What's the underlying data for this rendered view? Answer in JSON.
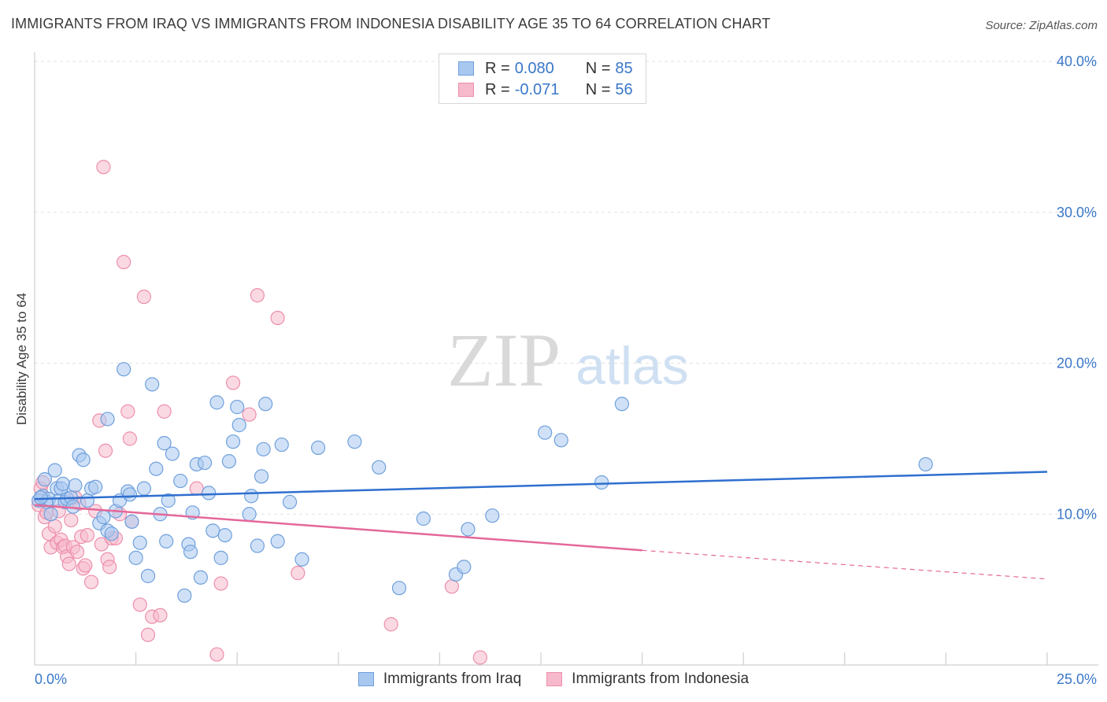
{
  "title": "IMMIGRANTS FROM IRAQ VS IMMIGRANTS FROM INDONESIA DISABILITY AGE 35 TO 64 CORRELATION CHART",
  "source": "Source: ZipAtlas.com",
  "watermark": {
    "zip": "ZIP",
    "atlas": "atlas"
  },
  "legend_top": [
    {
      "r_label": "R =",
      "r_value": "0.080",
      "n_label": "N =",
      "n_value": "85"
    },
    {
      "r_label": "R =",
      "r_value": "-0.071",
      "n_label": "N =",
      "n_value": "56"
    }
  ],
  "colors": {
    "iraq_fill": "#a9c8f0",
    "iraq_stroke": "#6fa0dc",
    "iraq_line": "#2f6fcf",
    "indo_fill": "#f7b9cc",
    "indo_stroke": "#ec8fab",
    "indo_line": "#e4689a",
    "grid": "#e2e2e2",
    "axis_text": "#3a77c9"
  },
  "chart_data": {
    "type": "scatter",
    "title": "IMMIGRANTS FROM IRAQ VS IMMIGRANTS FROM INDONESIA DISABILITY AGE 35 TO 64 CORRELATION CHART",
    "xlabel": "",
    "ylabel": "Disability Age 35 to 64",
    "xlim": [
      0,
      25
    ],
    "ylim": [
      0,
      40
    ],
    "x_tick_labels": [
      "0.0%",
      "25.0%"
    ],
    "y_ticks": [
      10,
      20,
      30,
      40
    ],
    "y_tick_labels": [
      "10.0%",
      "20.0%",
      "30.0%",
      "40.0%"
    ],
    "grid": true,
    "legend_position": "top-center",
    "series": [
      {
        "name": "Immigrants from Iraq",
        "r": 0.08,
        "n": 85,
        "trend": {
          "x0": 0,
          "y0": 11.0,
          "x1": 25,
          "y1": 12.8
        },
        "points": [
          [
            0.1,
            10.9
          ],
          [
            0.2,
            11.2
          ],
          [
            0.25,
            12.3
          ],
          [
            0.3,
            10.8
          ],
          [
            0.35,
            11.0
          ],
          [
            0.4,
            10.0
          ],
          [
            0.5,
            12.9
          ],
          [
            0.55,
            11.7
          ],
          [
            0.6,
            10.9
          ],
          [
            0.65,
            11.7
          ],
          [
            0.7,
            12.0
          ],
          [
            0.75,
            10.8
          ],
          [
            0.8,
            11.0
          ],
          [
            0.9,
            11.1
          ],
          [
            0.95,
            10.5
          ],
          [
            1.0,
            11.9
          ],
          [
            1.1,
            13.9
          ],
          [
            1.2,
            13.6
          ],
          [
            1.3,
            10.9
          ],
          [
            1.4,
            11.7
          ],
          [
            1.5,
            11.8
          ],
          [
            1.6,
            9.4
          ],
          [
            1.7,
            9.8
          ],
          [
            1.8,
            16.3
          ],
          [
            1.8,
            8.9
          ],
          [
            1.9,
            8.7
          ],
          [
            2.0,
            10.2
          ],
          [
            2.1,
            10.9
          ],
          [
            2.2,
            19.6
          ],
          [
            2.3,
            11.5
          ],
          [
            2.35,
            11.3
          ],
          [
            2.4,
            9.5
          ],
          [
            2.5,
            7.1
          ],
          [
            2.6,
            8.1
          ],
          [
            2.7,
            11.7
          ],
          [
            2.8,
            5.9
          ],
          [
            2.9,
            18.6
          ],
          [
            3.0,
            13.0
          ],
          [
            3.1,
            10.0
          ],
          [
            3.2,
            14.7
          ],
          [
            3.25,
            8.2
          ],
          [
            3.3,
            10.9
          ],
          [
            3.4,
            14.0
          ],
          [
            3.6,
            12.2
          ],
          [
            3.7,
            4.6
          ],
          [
            3.8,
            8.0
          ],
          [
            3.85,
            7.5
          ],
          [
            3.9,
            10.1
          ],
          [
            4.0,
            13.3
          ],
          [
            4.1,
            5.8
          ],
          [
            4.2,
            13.4
          ],
          [
            4.3,
            11.4
          ],
          [
            4.4,
            8.9
          ],
          [
            4.5,
            17.4
          ],
          [
            4.6,
            7.1
          ],
          [
            4.7,
            8.6
          ],
          [
            4.8,
            13.5
          ],
          [
            4.9,
            14.8
          ],
          [
            5.0,
            17.1
          ],
          [
            5.05,
            15.9
          ],
          [
            5.3,
            10.0
          ],
          [
            5.35,
            11.2
          ],
          [
            5.5,
            7.9
          ],
          [
            5.6,
            12.5
          ],
          [
            5.65,
            14.3
          ],
          [
            5.7,
            17.3
          ],
          [
            6.0,
            8.2
          ],
          [
            6.1,
            14.6
          ],
          [
            6.3,
            10.8
          ],
          [
            6.6,
            7.0
          ],
          [
            7.0,
            14.4
          ],
          [
            7.9,
            14.8
          ],
          [
            8.5,
            13.1
          ],
          [
            9.0,
            5.1
          ],
          [
            9.6,
            9.7
          ],
          [
            10.4,
            6.0
          ],
          [
            10.6,
            6.5
          ],
          [
            10.7,
            9.0
          ],
          [
            11.3,
            9.9
          ],
          [
            12.6,
            15.4
          ],
          [
            13.0,
            14.9
          ],
          [
            14.0,
            12.1
          ],
          [
            14.5,
            17.3
          ],
          [
            22.0,
            13.3
          ],
          [
            0.15,
            11.1
          ]
        ]
      },
      {
        "name": "Immigrants from Indonesia",
        "r": -0.071,
        "n": 56,
        "trend": {
          "x0": 0,
          "y0": 10.6,
          "x1": 15,
          "y1": 7.6,
          "dash_x1": 25,
          "dash_y1": 5.7
        },
        "points": [
          [
            0.1,
            10.6
          ],
          [
            0.15,
            11.7
          ],
          [
            0.2,
            12.1
          ],
          [
            0.25,
            9.8
          ],
          [
            0.3,
            10.1
          ],
          [
            0.35,
            8.7
          ],
          [
            0.4,
            7.8
          ],
          [
            0.5,
            9.2
          ],
          [
            0.55,
            8.1
          ],
          [
            0.6,
            10.2
          ],
          [
            0.65,
            8.3
          ],
          [
            0.7,
            7.8
          ],
          [
            0.75,
            7.9
          ],
          [
            0.8,
            7.2
          ],
          [
            0.85,
            6.7
          ],
          [
            0.9,
            9.6
          ],
          [
            0.95,
            7.8
          ],
          [
            1.0,
            11.1
          ],
          [
            1.05,
            7.5
          ],
          [
            1.1,
            10.7
          ],
          [
            1.15,
            8.5
          ],
          [
            1.2,
            6.4
          ],
          [
            1.25,
            6.6
          ],
          [
            1.3,
            8.6
          ],
          [
            1.4,
            5.5
          ],
          [
            1.5,
            10.2
          ],
          [
            1.6,
            16.2
          ],
          [
            1.65,
            8.0
          ],
          [
            1.7,
            33.0
          ],
          [
            1.75,
            14.2
          ],
          [
            1.8,
            7.0
          ],
          [
            1.85,
            6.5
          ],
          [
            1.9,
            8.4
          ],
          [
            2.0,
            8.4
          ],
          [
            2.1,
            10.0
          ],
          [
            2.2,
            26.7
          ],
          [
            2.3,
            16.8
          ],
          [
            2.35,
            15.0
          ],
          [
            2.4,
            9.5
          ],
          [
            2.6,
            4.0
          ],
          [
            2.7,
            24.4
          ],
          [
            2.8,
            2.0
          ],
          [
            2.9,
            3.2
          ],
          [
            3.1,
            3.3
          ],
          [
            3.2,
            16.8
          ],
          [
            4.0,
            11.7
          ],
          [
            4.5,
            0.7
          ],
          [
            4.6,
            5.4
          ],
          [
            4.9,
            18.7
          ],
          [
            5.3,
            16.6
          ],
          [
            5.5,
            24.5
          ],
          [
            6.0,
            23.0
          ],
          [
            6.5,
            6.1
          ],
          [
            8.8,
            2.7
          ],
          [
            10.3,
            5.2
          ],
          [
            11.0,
            0.5
          ]
        ]
      }
    ]
  }
}
